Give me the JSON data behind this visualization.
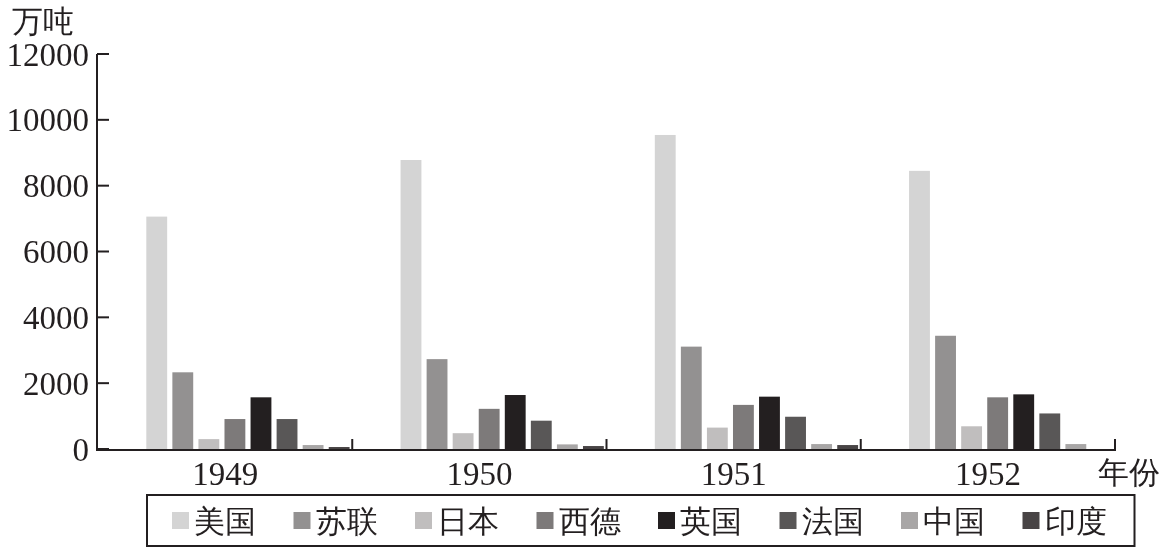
{
  "chart_data": {
    "type": "bar",
    "ylabel": "万吨",
    "xlabel": "年份",
    "categories": [
      "1949",
      "1950",
      "1951",
      "1952"
    ],
    "series": [
      {
        "name": "美国",
        "color": "#d4d4d4",
        "values": [
          7060,
          8780,
          9540,
          8450
        ]
      },
      {
        "name": "苏联",
        "color": "#939191",
        "values": [
          2330,
          2730,
          3110,
          3440
        ]
      },
      {
        "name": "日本",
        "color": "#c0bebe",
        "values": [
          300,
          480,
          650,
          690
        ]
      },
      {
        "name": "西德",
        "color": "#7d7a7a",
        "values": [
          910,
          1220,
          1340,
          1570
        ]
      },
      {
        "name": "英国",
        "color": "#231f20",
        "values": [
          1570,
          1640,
          1590,
          1660
        ]
      },
      {
        "name": "法国",
        "color": "#595757",
        "values": [
          910,
          860,
          980,
          1080
        ]
      },
      {
        "name": "中国",
        "color": "#a8a6a6",
        "values": [
          120,
          140,
          150,
          150
        ]
      },
      {
        "name": "印度",
        "color": "#484445",
        "values": [
          60,
          90,
          120,
          null
        ]
      }
    ],
    "ylim": [
      0,
      12000
    ],
    "yticks": [
      0,
      2000,
      4000,
      6000,
      8000,
      10000,
      12000
    ],
    "legend": "bottom"
  }
}
